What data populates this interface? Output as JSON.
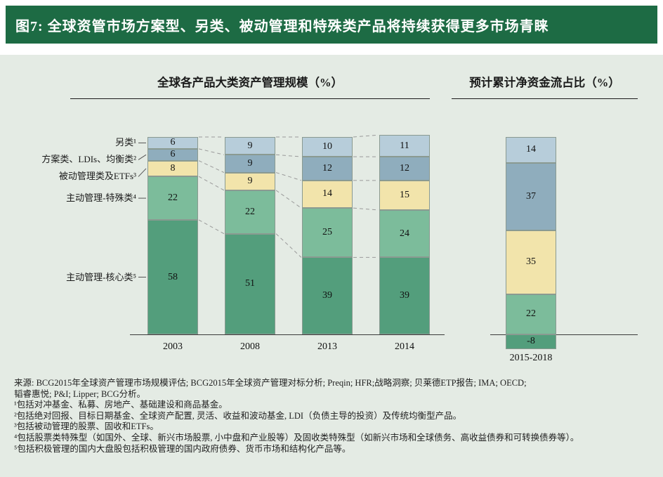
{
  "header": {
    "title": "图7: 全球资管市场方案型、另类、被动管理和特殊类产品将持续获得更多市场青睐"
  },
  "left_chart": {
    "title": "全球各产品大类资产管理规模（%）"
  },
  "right_chart": {
    "title": "预计累计净资金流占比（%）"
  },
  "colors": {
    "header_bg": "#1d6b44",
    "page_bg": "#e4ebe4",
    "alternatives": "#b7cdda",
    "solutions": "#8fadbd",
    "passive_etfs": "#f2e4ab",
    "active_specialties": "#7cbc9b",
    "active_core": "#539e7c"
  },
  "chart_data": [
    {
      "type": "bar",
      "stacked": true,
      "title": "全球各产品大类资产管理规模（%）",
      "xlabel": "",
      "ylabel": "",
      "ylim": [
        0,
        100
      ],
      "grid": false,
      "legend_position": "left-labels",
      "categories": [
        "2003",
        "2008",
        "2013",
        "2014"
      ],
      "series": [
        {
          "name": "另类¹",
          "color": "#b7cdda",
          "values": [
            6,
            9,
            10,
            11
          ]
        },
        {
          "name": "方案类、LDIs、均衡类²",
          "color": "#8fadbd",
          "values": [
            6,
            9,
            12,
            12
          ]
        },
        {
          "name": "被动管理类及ETFs³",
          "color": "#f2e4ab",
          "values": [
            8,
            9,
            14,
            15
          ]
        },
        {
          "name": "主动管理-特殊类⁴",
          "color": "#7cbc9b",
          "values": [
            22,
            22,
            25,
            24
          ]
        },
        {
          "name": "主动管理-核心类⁵",
          "color": "#539e7c",
          "values": [
            58,
            51,
            39,
            39
          ]
        }
      ]
    },
    {
      "type": "bar",
      "stacked": true,
      "title": "预计累计净资金流占比（%）",
      "xlabel": "",
      "ylabel": "",
      "ylim": [
        -8,
        108
      ],
      "grid": false,
      "categories": [
        "2015-2018"
      ],
      "series": [
        {
          "name": "另类¹",
          "color": "#b7cdda",
          "values": [
            14
          ]
        },
        {
          "name": "方案类、LDIs、均衡类²",
          "color": "#8fadbd",
          "values": [
            37
          ]
        },
        {
          "name": "被动管理类及ETFs³",
          "color": "#f2e4ab",
          "values": [
            35
          ]
        },
        {
          "name": "主动管理-特殊类⁴",
          "color": "#7cbc9b",
          "values": [
            22
          ]
        },
        {
          "name": "主动管理-核心类⁵",
          "color": "#539e7c",
          "values": [
            -8
          ]
        }
      ]
    }
  ],
  "footnotes": [
    "来源: BCG2015年全球资产管理市场规模评估; BCG2015年全球资产管理对标分析; Preqin; HFR;战略洞察; 贝莱德ETP报告; IMA; OECD;",
    "韬睿惠悦; P&I; Lipper; BCG分析。",
    "¹包括对冲基金、私募、房地产、基础建设和商品基金。",
    "²包括绝对回报、目标日期基金、全球资产配置, 灵活、收益和波动基金, LDI（负债主导的投资）及传统均衡型产品。",
    "³包括被动管理的股票、固收和ETFs。",
    "⁴包括股票类特殊型（如国外、全球、新兴市场股票, 小中盘和产业股等）及固收类特殊型（如新兴市场和全球债务、高收益债券和可转换债券等）。",
    "⁵包括积极管理的国内大盘股包括积极管理的国内政府债券、货币市场和结构化产品等。"
  ]
}
